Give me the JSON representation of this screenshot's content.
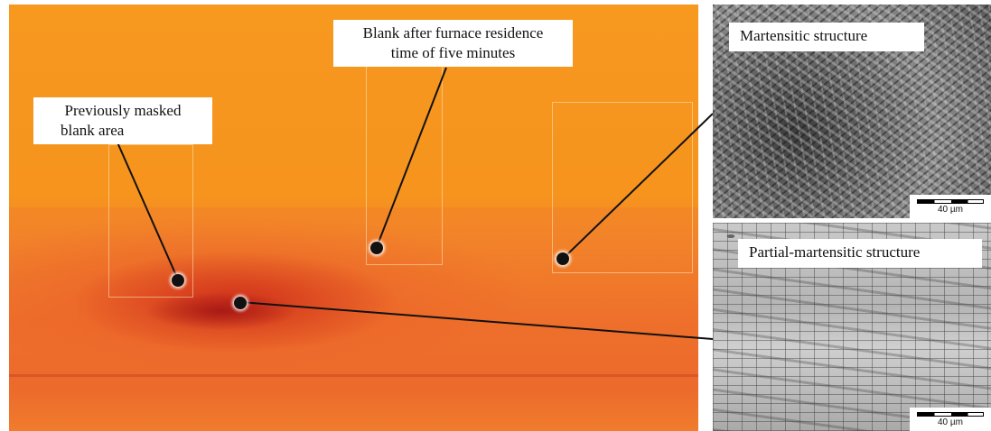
{
  "callouts": {
    "masked_area": "Previously masked blank area",
    "masked_area_line1": "Previously masked",
    "masked_area_line2": "blank area",
    "furnace_line1": "Blank after furnace residence",
    "furnace_line2": "time of five minutes"
  },
  "micrographs": {
    "top": {
      "label": "Martensitic structure",
      "scale": "40 µm"
    },
    "bottom": {
      "label": "Partial-martensitic structure",
      "scale": "40 µm"
    }
  },
  "colors": {
    "thermal_hot": "#a01414",
    "thermal_warm": "#ec6a2c",
    "thermal_base": "#f7981f",
    "label_bg": "#ffffff"
  }
}
